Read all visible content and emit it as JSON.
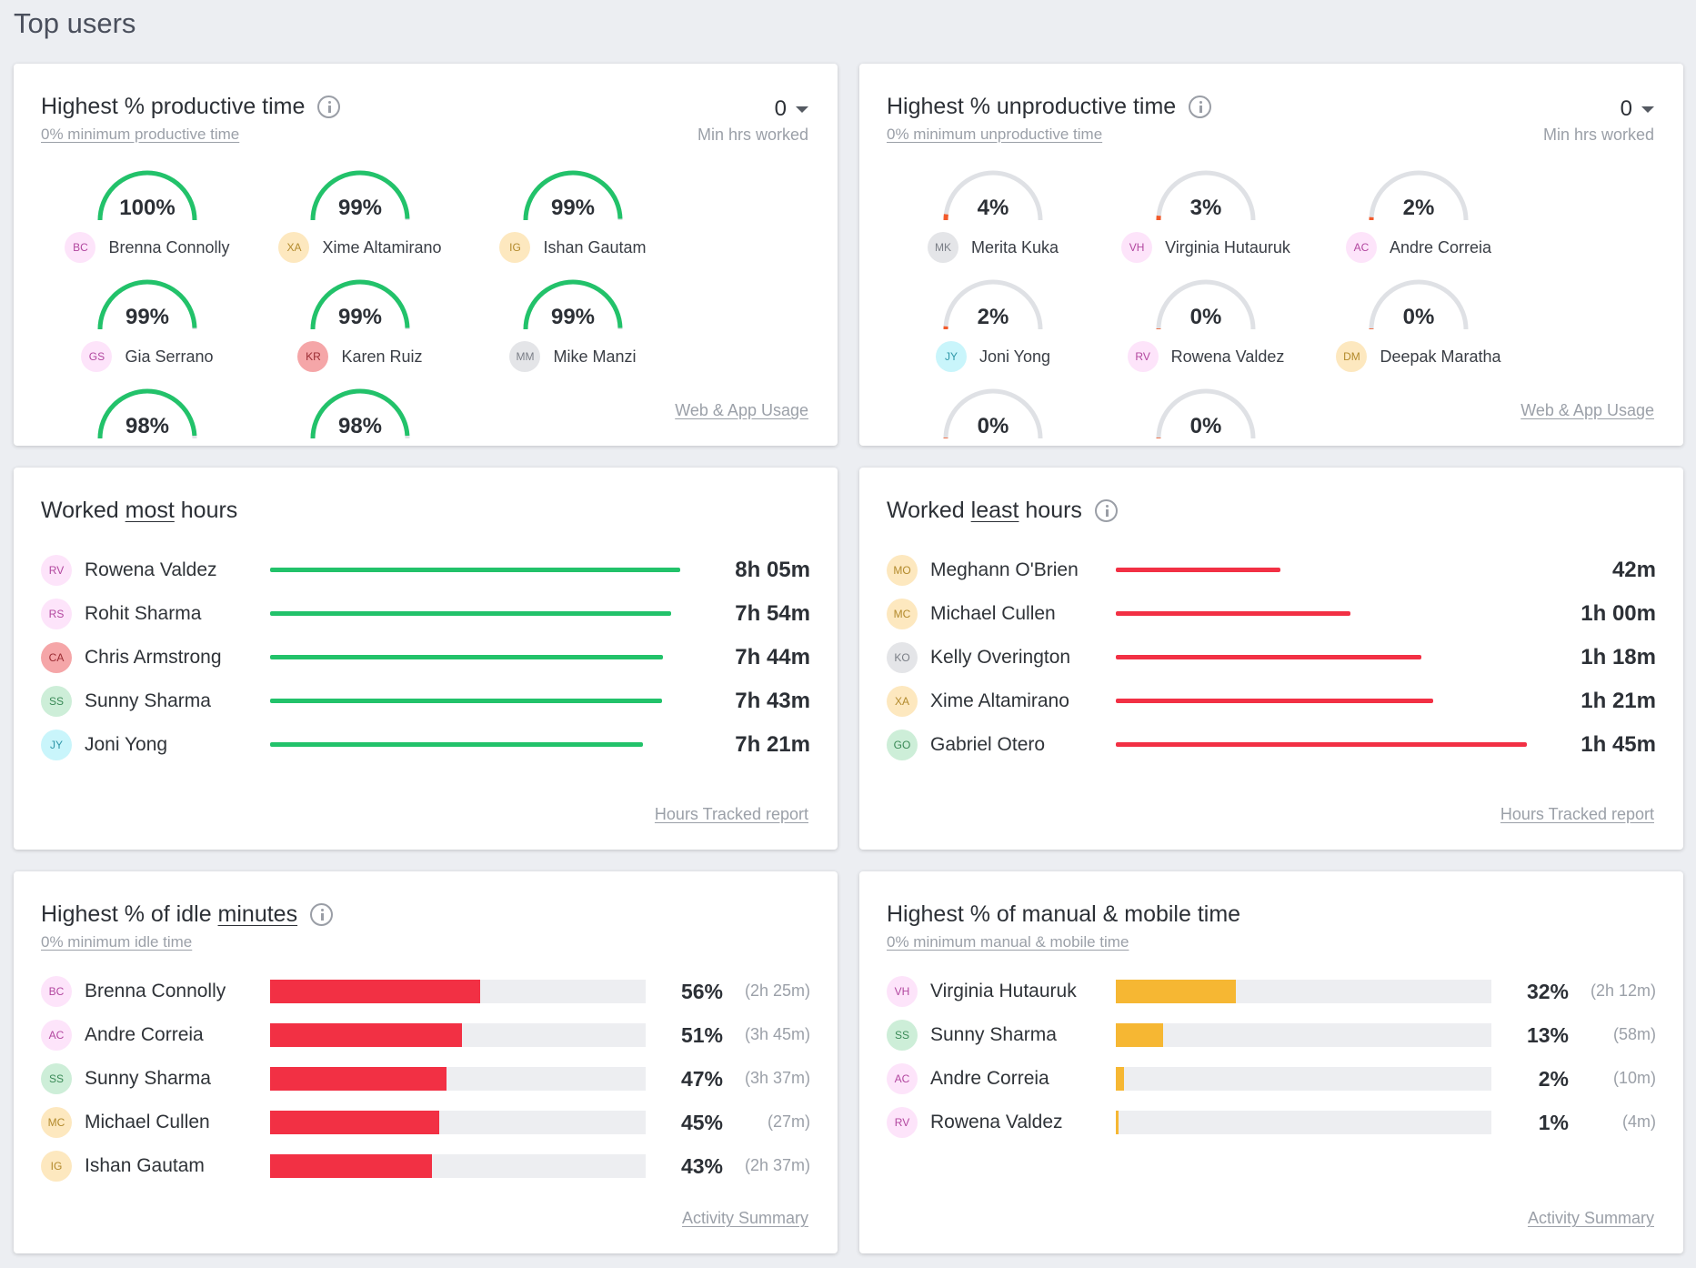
{
  "page": {
    "title": "Top users"
  },
  "colors": {
    "green": "#22c26a",
    "red": "#f23044",
    "yellow": "#f6b733",
    "gauge_track": "#dfe1e5",
    "gauge_unprod": "#f25a2b"
  },
  "productive": {
    "title": "Highest % productive time",
    "subtitle": "0% minimum productive time",
    "min_value": "0",
    "min_label": "Min hrs worked",
    "footer": "Web & App Usage",
    "users": [
      {
        "pct_label": "100%",
        "pct": 100,
        "initials": "BC",
        "name": "Brenna Connolly",
        "avatar_bg": "#fde4fa",
        "avatar_fg": "#b2479f"
      },
      {
        "pct_label": "99%",
        "pct": 99,
        "initials": "XA",
        "name": "Xime Altamirano",
        "avatar_bg": "#fde8bf",
        "avatar_fg": "#b38a2c"
      },
      {
        "pct_label": "99%",
        "pct": 99,
        "initials": "IG",
        "name": "Ishan Gautam",
        "avatar_bg": "#fde8bf",
        "avatar_fg": "#b38a2c"
      },
      {
        "pct_label": "99%",
        "pct": 99,
        "initials": "GS",
        "name": "Gia Serrano",
        "avatar_bg": "#fde4fa",
        "avatar_fg": "#b2479f"
      },
      {
        "pct_label": "99%",
        "pct": 99,
        "initials": "KR",
        "name": "Karen Ruiz",
        "avatar_bg": "#f5a6a8",
        "avatar_fg": "#9b2c33"
      },
      {
        "pct_label": "99%",
        "pct": 99,
        "initials": "MM",
        "name": "Mike Manzi",
        "avatar_bg": "#e4e5e8",
        "avatar_fg": "#7a7e86"
      },
      {
        "pct_label": "98%",
        "pct": 98,
        "initials": "",
        "name": "",
        "avatar_bg": "#ffffff",
        "avatar_fg": "#ffffff"
      },
      {
        "pct_label": "98%",
        "pct": 98,
        "initials": "",
        "name": "",
        "avatar_bg": "#ffffff",
        "avatar_fg": "#ffffff"
      }
    ]
  },
  "unproductive": {
    "title": "Highest % unproductive time",
    "subtitle": "0% minimum unproductive time",
    "min_value": "0",
    "min_label": "Min hrs worked",
    "footer": "Web & App Usage",
    "users": [
      {
        "pct_label": "4%",
        "pct": 4,
        "initials": "MK",
        "name": "Merita Kuka",
        "avatar_bg": "#e4e5e8",
        "avatar_fg": "#7a7e86"
      },
      {
        "pct_label": "3%",
        "pct": 3,
        "initials": "VH",
        "name": "Virginia Hutauruk",
        "avatar_bg": "#fde4fa",
        "avatar_fg": "#b2479f"
      },
      {
        "pct_label": "2%",
        "pct": 2,
        "initials": "AC",
        "name": "Andre Correia",
        "avatar_bg": "#fde4fa",
        "avatar_fg": "#b2479f"
      },
      {
        "pct_label": "2%",
        "pct": 2,
        "initials": "JY",
        "name": "Joni Yong",
        "avatar_bg": "#c9f5fb",
        "avatar_fg": "#2f97a8"
      },
      {
        "pct_label": "0%",
        "pct": 0.5,
        "initials": "RV",
        "name": "Rowena Valdez",
        "avatar_bg": "#fde4fa",
        "avatar_fg": "#b2479f"
      },
      {
        "pct_label": "0%",
        "pct": 0.5,
        "initials": "DM",
        "name": "Deepak Maratha",
        "avatar_bg": "#fde8bf",
        "avatar_fg": "#b38a2c"
      },
      {
        "pct_label": "0%",
        "pct": 0.5,
        "initials": "",
        "name": "",
        "avatar_bg": "#ffffff",
        "avatar_fg": "#ffffff"
      },
      {
        "pct_label": "0%",
        "pct": 0.5,
        "initials": "",
        "name": "",
        "avatar_bg": "#ffffff",
        "avatar_fg": "#ffffff"
      }
    ]
  },
  "most_hours": {
    "title_pre": "Worked ",
    "title_em": "most",
    "title_post": " hours",
    "footer": "Hours Tracked report",
    "scale_minutes": 500,
    "users": [
      {
        "initials": "RV",
        "name": "Rowena Valdez",
        "value": "8h 05m",
        "minutes": 485,
        "avatar_bg": "#fde4fa",
        "avatar_fg": "#b2479f"
      },
      {
        "initials": "RS",
        "name": "Rohit Sharma",
        "value": "7h 54m",
        "minutes": 474,
        "avatar_bg": "#fde4fa",
        "avatar_fg": "#b2479f"
      },
      {
        "initials": "CA",
        "name": "Chris Armstrong",
        "value": "7h 44m",
        "minutes": 464,
        "avatar_bg": "#f5a6a8",
        "avatar_fg": "#9b2c33"
      },
      {
        "initials": "SS",
        "name": "Sunny Sharma",
        "value": "7h 43m",
        "minutes": 463,
        "avatar_bg": "#cdeed8",
        "avatar_fg": "#3a8a57"
      },
      {
        "initials": "JY",
        "name": "Joni Yong",
        "value": "7h 21m",
        "minutes": 441,
        "avatar_bg": "#c9f5fb",
        "avatar_fg": "#2f97a8"
      }
    ]
  },
  "least_hours": {
    "title_pre": "Worked ",
    "title_em": "least",
    "title_post": " hours",
    "footer": "Hours Tracked report",
    "scale_minutes": 108,
    "users": [
      {
        "initials": "MO",
        "name": "Meghann O'Brien",
        "value": "42m",
        "minutes": 42,
        "avatar_bg": "#fde8bf",
        "avatar_fg": "#b38a2c"
      },
      {
        "initials": "MC",
        "name": "Michael Cullen",
        "value": "1h 00m",
        "minutes": 60,
        "avatar_bg": "#fde8bf",
        "avatar_fg": "#b38a2c"
      },
      {
        "initials": "KO",
        "name": "Kelly Overington",
        "value": "1h 18m",
        "minutes": 78,
        "avatar_bg": "#e4e5e8",
        "avatar_fg": "#7a7e86"
      },
      {
        "initials": "XA",
        "name": "Xime Altamirano",
        "value": "1h 21m",
        "minutes": 81,
        "avatar_bg": "#fde8bf",
        "avatar_fg": "#b38a2c"
      },
      {
        "initials": "GO",
        "name": "Gabriel Otero",
        "value": "1h 45m",
        "minutes": 105,
        "avatar_bg": "#cdeed8",
        "avatar_fg": "#3a8a57"
      }
    ]
  },
  "idle": {
    "title_pre": "Highest % of idle ",
    "title_em": "minutes",
    "subtitle": "0% minimum idle time",
    "footer": "Activity Summary",
    "users": [
      {
        "initials": "BC",
        "name": "Brenna Connolly",
        "pct_label": "56%",
        "pct": 56,
        "dur": "(2h 25m)",
        "avatar_bg": "#fde4fa",
        "avatar_fg": "#b2479f"
      },
      {
        "initials": "AC",
        "name": "Andre Correia",
        "pct_label": "51%",
        "pct": 51,
        "dur": "(3h 45m)",
        "avatar_bg": "#fde4fa",
        "avatar_fg": "#b2479f"
      },
      {
        "initials": "SS",
        "name": "Sunny Sharma",
        "pct_label": "47%",
        "pct": 47,
        "dur": "(3h 37m)",
        "avatar_bg": "#cdeed8",
        "avatar_fg": "#3a8a57"
      },
      {
        "initials": "MC",
        "name": "Michael Cullen",
        "pct_label": "45%",
        "pct": 45,
        "dur": "(27m)",
        "avatar_bg": "#fde8bf",
        "avatar_fg": "#b38a2c"
      },
      {
        "initials": "IG",
        "name": "Ishan Gautam",
        "pct_label": "43%",
        "pct": 43,
        "dur": "(2h 37m)",
        "avatar_bg": "#fde8bf",
        "avatar_fg": "#b38a2c"
      }
    ]
  },
  "manual": {
    "title": "Highest % of manual & mobile time",
    "subtitle": "0% minimum manual & mobile time",
    "footer": "Activity Summary",
    "users": [
      {
        "initials": "VH",
        "name": "Virginia Hutauruk",
        "pct_label": "32%",
        "pct": 32,
        "dur": "(2h 12m)",
        "avatar_bg": "#fde4fa",
        "avatar_fg": "#b2479f"
      },
      {
        "initials": "SS",
        "name": "Sunny Sharma",
        "pct_label": "13%",
        "pct": 12.5,
        "dur": "(58m)",
        "avatar_bg": "#cdeed8",
        "avatar_fg": "#3a8a57"
      },
      {
        "initials": "AC",
        "name": "Andre Correia",
        "pct_label": "2%",
        "pct": 2.3,
        "dur": "(10m)",
        "avatar_bg": "#fde4fa",
        "avatar_fg": "#b2479f"
      },
      {
        "initials": "RV",
        "name": "Rowena Valdez",
        "pct_label": "1%",
        "pct": 0.7,
        "dur": "(4m)",
        "avatar_bg": "#fde4fa",
        "avatar_fg": "#b2479f"
      }
    ]
  }
}
